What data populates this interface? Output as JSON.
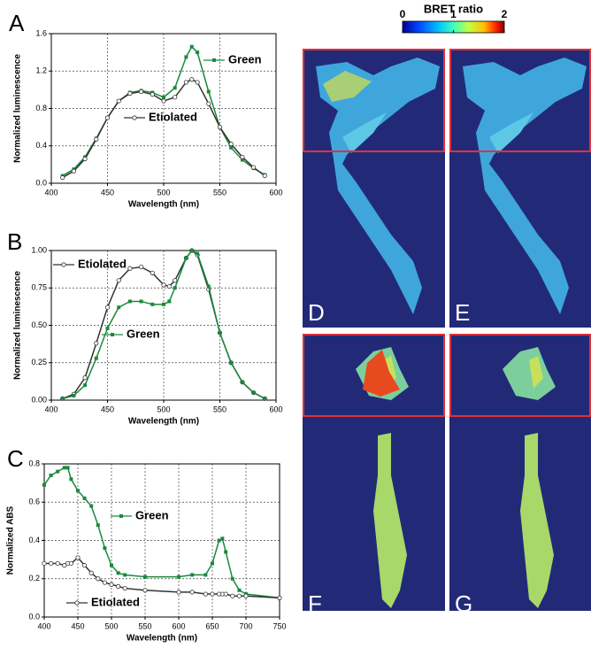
{
  "chart_data": [
    {
      "type": "line",
      "xlabel": "Wavelength (nm)",
      "ylabel": "Normalized luminescence",
      "xlim": [
        400,
        600
      ],
      "xticks": [
        400,
        450,
        500,
        550,
        600
      ],
      "ylim": [
        0,
        1.6
      ],
      "yticks": [
        {
          "value": 0,
          "label": "0.0"
        },
        0.4,
        0.8,
        1.2,
        1.6
      ],
      "grid": true,
      "x": [
        410,
        420,
        430,
        440,
        450,
        460,
        470,
        480,
        490,
        500,
        510,
        520,
        525,
        530,
        540,
        550,
        560,
        570,
        580,
        590
      ],
      "series": [
        {
          "name": "Green",
          "color": "#1a8a3c",
          "marker": "square",
          "values": [
            0.08,
            0.15,
            0.28,
            0.48,
            0.7,
            0.88,
            0.97,
            0.99,
            0.97,
            0.92,
            1.02,
            1.35,
            1.46,
            1.4,
            0.98,
            0.6,
            0.38,
            0.25,
            0.16,
            0.09
          ]
        },
        {
          "name": "Etiolated",
          "color": "#333333",
          "marker": "circle",
          "values": [
            0.06,
            0.13,
            0.26,
            0.47,
            0.7,
            0.88,
            0.96,
            0.98,
            0.95,
            0.88,
            0.92,
            1.08,
            1.11,
            1.08,
            0.85,
            0.6,
            0.42,
            0.28,
            0.17,
            0.08
          ]
        }
      ]
    },
    {
      "type": "line",
      "xlabel": "Wavelength (nm)",
      "ylabel": "Normalized luminescence",
      "xlim": [
        400,
        600
      ],
      "xticks": [
        400,
        450,
        500,
        550,
        600
      ],
      "ylim": [
        0,
        1
      ],
      "yticks": [
        {
          "value": 0,
          "label": "0.00"
        },
        {
          "value": 0.25,
          "label": "0.25"
        },
        {
          "value": 0.5,
          "label": "0.50"
        },
        {
          "value": 0.75,
          "label": "0.75"
        },
        {
          "value": 1,
          "label": "1.00"
        }
      ],
      "grid": true,
      "x": [
        410,
        420,
        430,
        440,
        450,
        460,
        470,
        480,
        490,
        500,
        505,
        510,
        520,
        525,
        530,
        540,
        550,
        560,
        570,
        580,
        590
      ],
      "series": [
        {
          "name": "Etiolated",
          "color": "#333333",
          "marker": "circle",
          "values": [
            0.01,
            0.04,
            0.15,
            0.38,
            0.62,
            0.8,
            0.88,
            0.89,
            0.85,
            0.77,
            0.76,
            0.8,
            0.95,
            1.0,
            0.97,
            0.74,
            0.45,
            0.25,
            0.12,
            0.05,
            0.01
          ]
        },
        {
          "name": "Green",
          "color": "#1a8a3c",
          "marker": "square",
          "values": [
            0.01,
            0.03,
            0.1,
            0.28,
            0.48,
            0.62,
            0.66,
            0.66,
            0.64,
            0.64,
            0.66,
            0.75,
            0.95,
            1.0,
            0.98,
            0.76,
            0.45,
            0.25,
            0.12,
            0.05,
            0.01
          ]
        }
      ]
    },
    {
      "type": "line",
      "xlabel": "Wavelength (nm)",
      "ylabel": "Normalized ABS",
      "xlim": [
        400,
        750
      ],
      "xticks": [
        400,
        450,
        500,
        550,
        600,
        650,
        700,
        750
      ],
      "ylim": [
        0,
        0.8
      ],
      "yticks": [
        {
          "value": 0,
          "label": "0.0"
        },
        0.2,
        0.4,
        0.6,
        0.8
      ],
      "grid": true,
      "x": [
        400,
        410,
        420,
        430,
        435,
        440,
        450,
        460,
        470,
        480,
        490,
        500,
        510,
        520,
        550,
        600,
        620,
        640,
        650,
        660,
        665,
        670,
        680,
        690,
        700,
        750
      ],
      "series": [
        {
          "name": "Green",
          "color": "#1a8a3c",
          "marker": "square",
          "values": [
            0.69,
            0.74,
            0.76,
            0.78,
            0.78,
            0.72,
            0.66,
            0.62,
            0.58,
            0.48,
            0.36,
            0.27,
            0.23,
            0.22,
            0.21,
            0.21,
            0.22,
            0.22,
            0.28,
            0.4,
            0.41,
            0.34,
            0.2,
            0.14,
            0.12,
            0.1
          ]
        },
        {
          "name": "Etiolated",
          "color": "#333333",
          "marker": "circle",
          "values": [
            0.28,
            0.28,
            0.28,
            0.27,
            0.28,
            0.28,
            0.31,
            0.27,
            0.23,
            0.2,
            0.18,
            0.17,
            0.16,
            0.15,
            0.14,
            0.13,
            0.13,
            0.12,
            0.12,
            0.12,
            0.12,
            0.12,
            0.11,
            0.11,
            0.11,
            0.1
          ]
        }
      ]
    }
  ],
  "colorbar": {
    "title": "BRET ratio",
    "lim": [
      0,
      2
    ],
    "ticks": [
      0,
      1,
      2
    ]
  },
  "panel_labels": [
    "A",
    "B",
    "C",
    "D",
    "E",
    "F",
    "G"
  ]
}
